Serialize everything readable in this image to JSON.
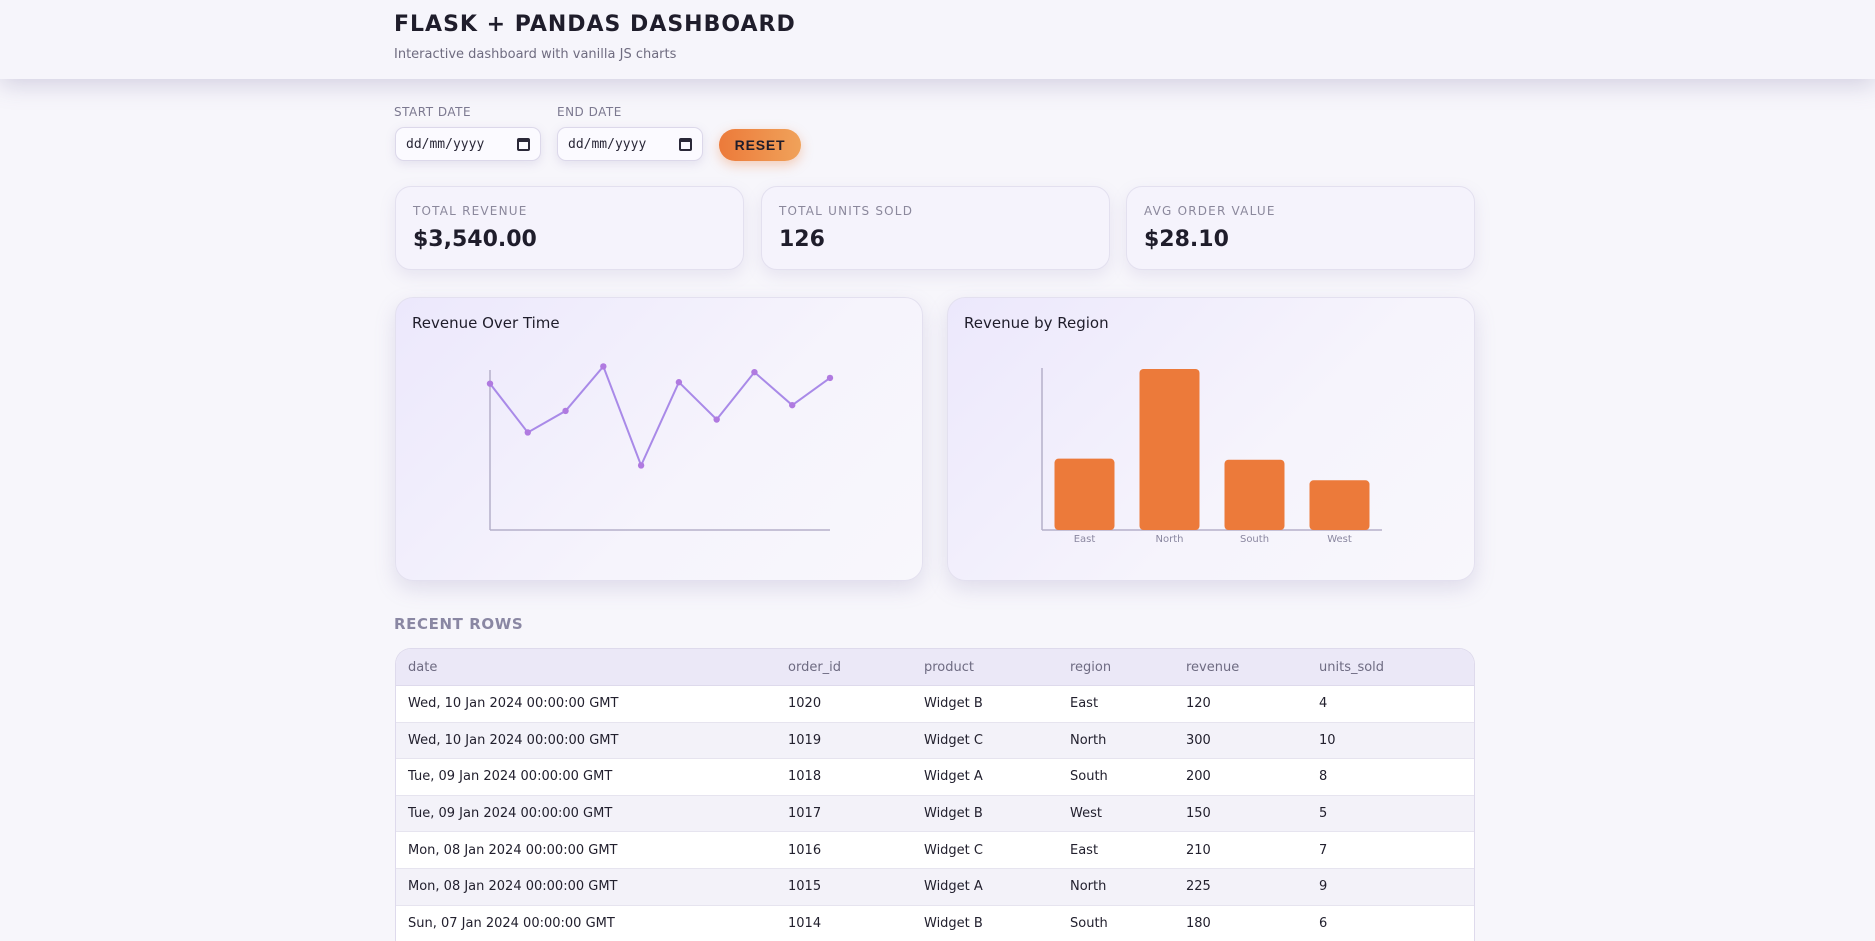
{
  "header": {
    "title": "FLASK + PANDAS DASHBOARD",
    "subtitle": "Interactive dashboard with vanilla JS charts"
  },
  "filters": {
    "start_label": "START DATE",
    "end_label": "END DATE",
    "start_value": "dd/mm/yyyy",
    "end_value": "dd/mm/yyyy",
    "reset_label": "RESET"
  },
  "kpis": [
    {
      "label": "TOTAL REVENUE",
      "value": "$3,540.00"
    },
    {
      "label": "TOTAL UNITS SOLD",
      "value": "126"
    },
    {
      "label": "AVG ORDER VALUE",
      "value": "$28.10"
    }
  ],
  "colors": {
    "accent": "#ec7a3a",
    "line": "#a98ae8",
    "axis": "#b5b0c9"
  },
  "chart_data": [
    {
      "type": "line",
      "title": "Revenue Over Time",
      "values": [
        242,
        208,
        223,
        254,
        185,
        243,
        217,
        250,
        227,
        246
      ],
      "ylim": [
        140,
        255
      ]
    },
    {
      "type": "bar",
      "title": "Revenue by Region",
      "categories": [
        "East",
        "North",
        "South",
        "West"
      ],
      "values": [
        330,
        745,
        325,
        230
      ],
      "ylim": [
        0,
        745
      ]
    }
  ],
  "table": {
    "title": "RECENT ROWS",
    "columns": [
      "date",
      "order_id",
      "product",
      "region",
      "revenue",
      "units_sold"
    ],
    "rows": [
      [
        "Wed, 10 Jan 2024 00:00:00 GMT",
        "1020",
        "Widget B",
        "East",
        "120",
        "4"
      ],
      [
        "Wed, 10 Jan 2024 00:00:00 GMT",
        "1019",
        "Widget C",
        "North",
        "300",
        "10"
      ],
      [
        "Tue, 09 Jan 2024 00:00:00 GMT",
        "1018",
        "Widget A",
        "South",
        "200",
        "8"
      ],
      [
        "Tue, 09 Jan 2024 00:00:00 GMT",
        "1017",
        "Widget B",
        "West",
        "150",
        "5"
      ],
      [
        "Mon, 08 Jan 2024 00:00:00 GMT",
        "1016",
        "Widget C",
        "East",
        "210",
        "7"
      ],
      [
        "Mon, 08 Jan 2024 00:00:00 GMT",
        "1015",
        "Widget A",
        "North",
        "225",
        "9"
      ],
      [
        "Sun, 07 Jan 2024 00:00:00 GMT",
        "1014",
        "Widget B",
        "South",
        "180",
        "6"
      ]
    ]
  }
}
